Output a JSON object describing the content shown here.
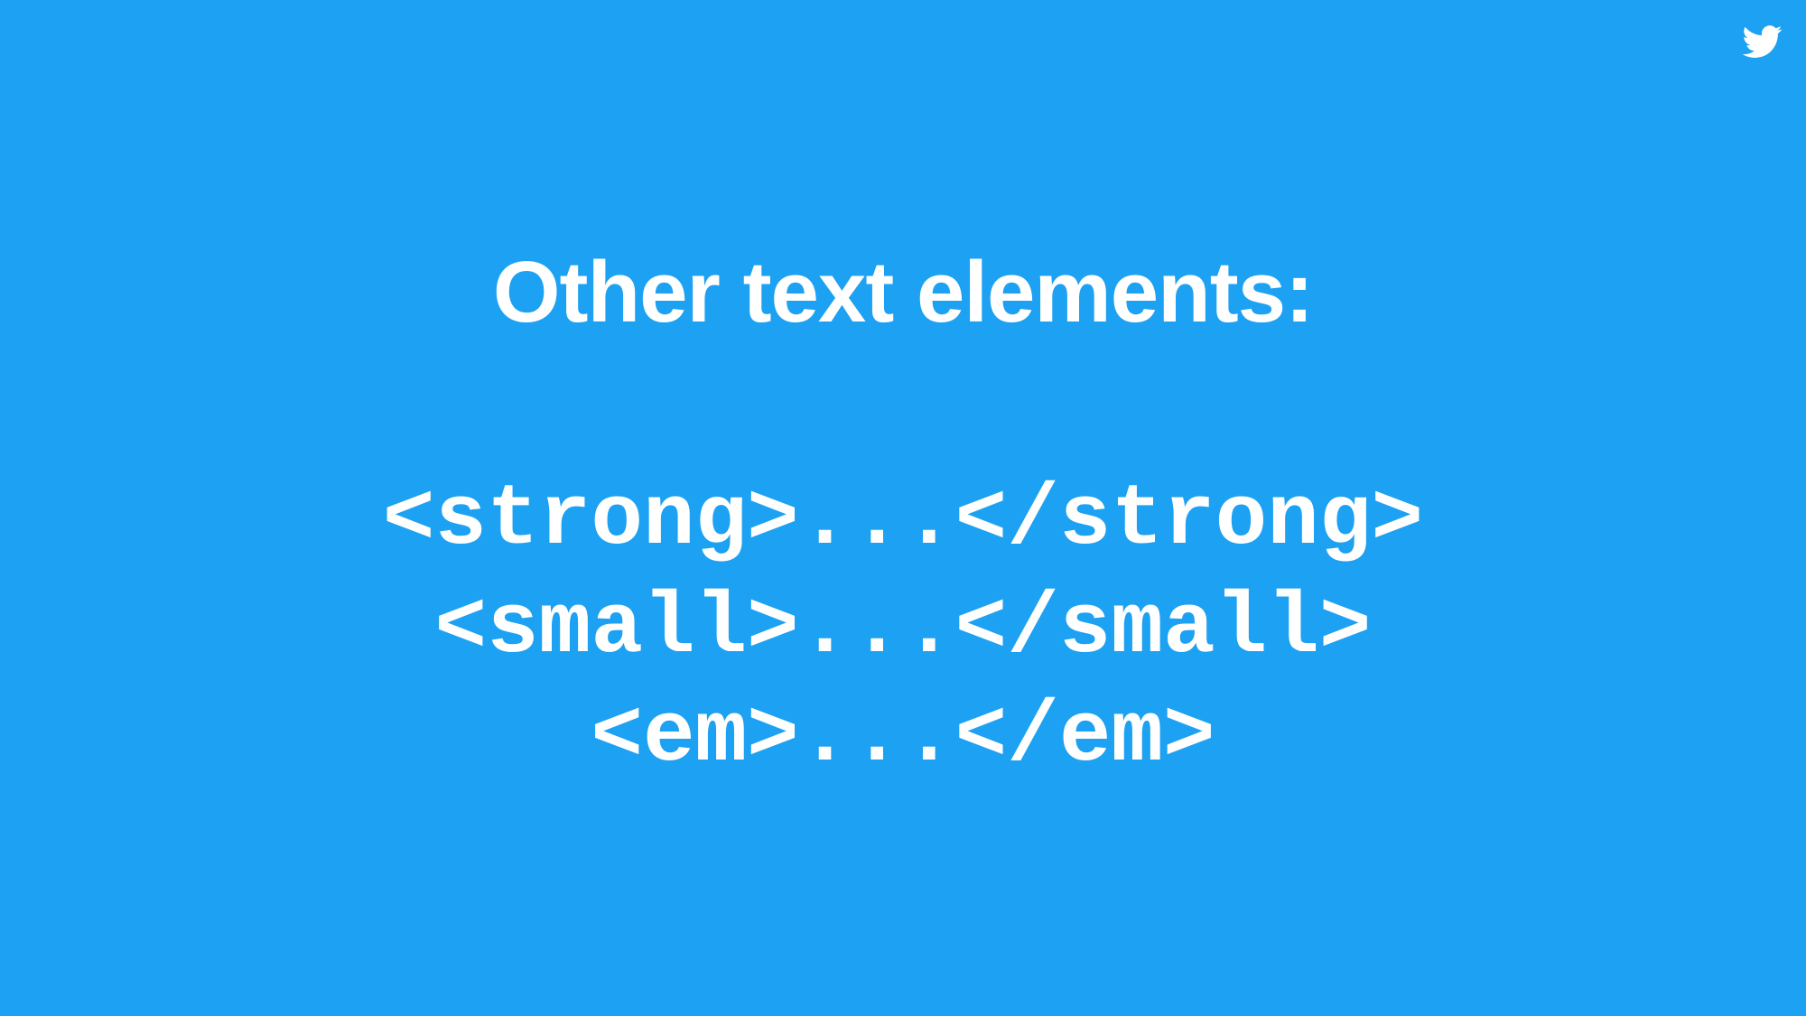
{
  "slide": {
    "title": "Other text elements:",
    "code_lines": [
      "<strong>...</strong>",
      "<small>...</small>",
      "<em>...</em>"
    ],
    "corner_icon": "twitter-bird-icon",
    "colors": {
      "background": "#1DA1F2",
      "text": "#FFFFFF"
    }
  }
}
